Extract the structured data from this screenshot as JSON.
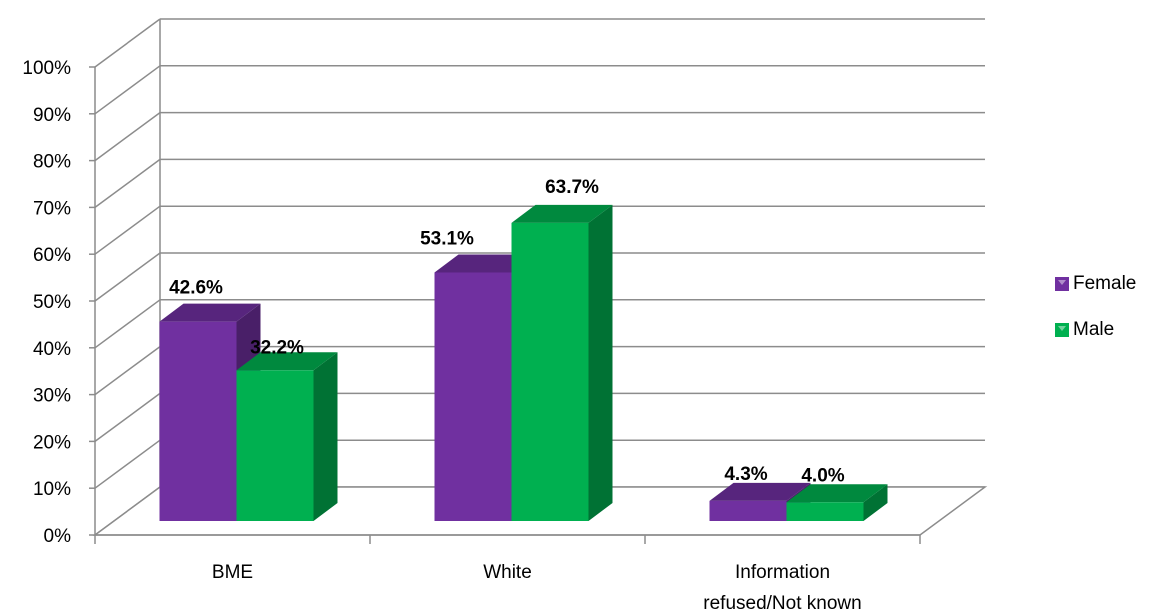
{
  "chart_data": {
    "type": "bar",
    "categories": [
      "BME",
      "White",
      "Information refused/Not known"
    ],
    "category_lines": [
      [
        "BME"
      ],
      [
        "White"
      ],
      [
        "Information",
        "refused/Not known"
      ]
    ],
    "series": [
      {
        "name": "Female",
        "values": [
          42.6,
          53.1,
          4.3
        ],
        "labels": [
          "42.6%",
          "53.1%",
          "4.3%"
        ],
        "color": "#7030a0"
      },
      {
        "name": "Male",
        "values": [
          32.2,
          63.7,
          4.0
        ],
        "labels": [
          "32.2%",
          "63.7%",
          "4.0%"
        ],
        "color": "#00b050"
      }
    ],
    "yticks": [
      "0%",
      "10%",
      "20%",
      "30%",
      "40%",
      "50%",
      "60%",
      "70%",
      "80%",
      "90%",
      "100%"
    ],
    "ylim": [
      0,
      100
    ],
    "grid": true,
    "legend_position": "right",
    "style": "3d-clustered-column"
  },
  "legend": {
    "items": [
      {
        "label": "Female",
        "color": "#7030a0"
      },
      {
        "label": "Male",
        "color": "#00b050"
      }
    ]
  }
}
